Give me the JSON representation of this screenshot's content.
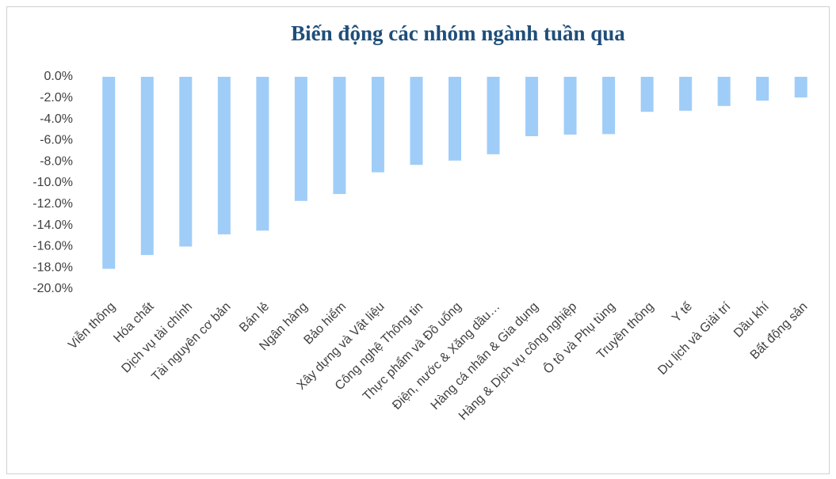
{
  "chart_data": {
    "type": "bar",
    "title": "Biến động các nhóm ngành tuần qua",
    "categories": [
      "Viễn thông",
      "Hóa chất",
      "Dịch vụ tài chính",
      "Tài nguyên cơ bản",
      "Bán lẻ",
      "Ngân hàng",
      "Bảo hiểm",
      "Xây dựng và Vật liệu",
      "Công nghệ Thông tin",
      "Thực phẩm và Đồ uống",
      "Điện, nước & Xăng dầu…",
      "Hàng cá nhân & Gia dụng",
      "Hàng & Dịch vụ công nghiệp",
      "Ô tô và Phụ tùng",
      "Truyền thông",
      "Y tế",
      "Du lịch và Giải trí",
      "Dầu khí",
      "Bất động sản"
    ],
    "values": [
      -18.1,
      -16.8,
      -16.0,
      -14.85,
      -14.5,
      -11.7,
      -11.05,
      -9.0,
      -8.3,
      -7.9,
      -7.3,
      -5.6,
      -5.45,
      -5.4,
      -3.3,
      -3.2,
      -2.75,
      -2.25,
      -1.95
    ],
    "color": "#9fcdf8",
    "ylim": [
      -20,
      0
    ],
    "yticks": [
      {
        "value": 0,
        "label": "0.0%"
      },
      {
        "value": -2,
        "label": "-2.0%"
      },
      {
        "value": -4,
        "label": "-4.0%"
      },
      {
        "value": -6,
        "label": "-6.0%"
      },
      {
        "value": -8,
        "label": "-8.0%"
      },
      {
        "value": -10,
        "label": "-10.0%"
      },
      {
        "value": -12,
        "label": "-12.0%"
      },
      {
        "value": -14,
        "label": "-14.0%"
      },
      {
        "value": -16,
        "label": "-16.0%"
      },
      {
        "value": -18,
        "label": "-18.0%"
      },
      {
        "value": -20,
        "label": "-20.0%"
      }
    ],
    "grid": false
  }
}
